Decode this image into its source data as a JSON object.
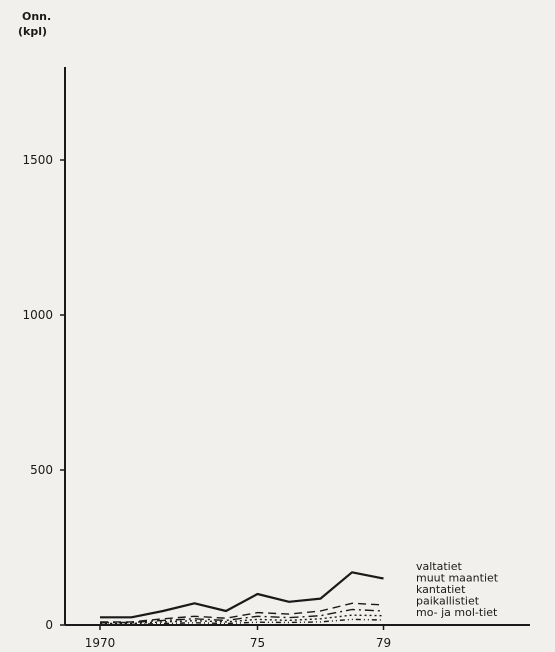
{
  "chart_data": {
    "type": "line",
    "ylabel": [
      "Onn.",
      "(kpl)"
    ],
    "xlabel": "",
    "title": "",
    "ylim": [
      0,
      1800
    ],
    "xlim": [
      1970,
      1982
    ],
    "yticks": [
      {
        "value": 0,
        "label": "0"
      },
      {
        "value": 500,
        "label": "500"
      },
      {
        "value": 1000,
        "label": "1000"
      },
      {
        "value": 1500,
        "label": "1500"
      }
    ],
    "xticks": [
      {
        "value": 1970,
        "label": "1970"
      },
      {
        "value": 1975,
        "label": "75"
      },
      {
        "value": 1979,
        "label": "79"
      }
    ],
    "x": [
      1970,
      1971,
      1972,
      1973,
      1974,
      1975,
      1976,
      1977,
      1978,
      1979
    ],
    "series": [
      {
        "name": "valtatiet",
        "style": "solid",
        "values": [
          25,
          25,
          45,
          70,
          45,
          100,
          75,
          85,
          170,
          150
        ]
      },
      {
        "name": "muut maantiet",
        "style": "dashed",
        "values": [
          10,
          10,
          20,
          28,
          22,
          40,
          35,
          45,
          70,
          65
        ]
      },
      {
        "name": "kantatiet",
        "style": "dashdot",
        "values": [
          8,
          8,
          15,
          20,
          15,
          28,
          24,
          30,
          50,
          45
        ]
      },
      {
        "name": "paikallistiet",
        "style": "dotted",
        "values": [
          5,
          5,
          10,
          14,
          10,
          18,
          15,
          20,
          32,
          30
        ]
      },
      {
        "name": "mo- ja mol-tiet",
        "style": "dashdot2",
        "values": [
          2,
          2,
          5,
          7,
          5,
          9,
          8,
          10,
          18,
          16
        ]
      }
    ],
    "legend": {
      "placement": "bottom-right",
      "entries": [
        "valtatiet",
        "muut maantiet",
        "kantatiet",
        "paikallistiet",
        "mo- ja mol-tiet"
      ]
    },
    "grid": false,
    "colors": {
      "line": "#1a1a1a",
      "background": "#f1f0ec"
    }
  }
}
